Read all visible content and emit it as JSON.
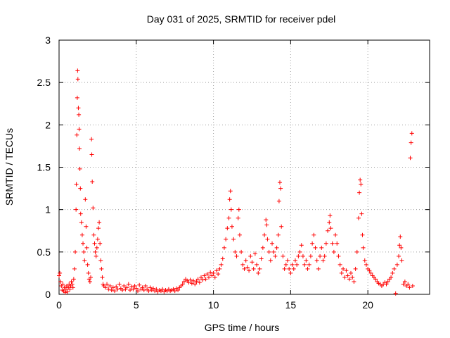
{
  "chart_data": {
    "type": "scatter",
    "title": "Day 031 of 2025, SRMTID for receiver pdel",
    "xlabel": "GPS time / hours",
    "ylabel": "SRMTID / TECUs",
    "xlim": [
      0,
      24
    ],
    "ylim": [
      0,
      3
    ],
    "xticks": [
      0,
      5,
      10,
      15,
      20
    ],
    "yticks": [
      0,
      0.5,
      1,
      1.5,
      2,
      2.5,
      3
    ],
    "xtick_labels": [
      "0",
      "5",
      "10",
      "15",
      "20"
    ],
    "ytick_labels": [
      "0",
      "0.5",
      "1",
      "1.5",
      "2",
      "2.5",
      "3"
    ],
    "grid": true,
    "marker": "+",
    "color": "#ff0000",
    "series": [
      {
        "name": "SRMTID",
        "points": [
          [
            0.0,
            0.22
          ],
          [
            0.05,
            0.25
          ],
          [
            0.1,
            0.15
          ],
          [
            0.15,
            0.1
          ],
          [
            0.2,
            0.05
          ],
          [
            0.25,
            0.12
          ],
          [
            0.3,
            0.04
          ],
          [
            0.35,
            0.08
          ],
          [
            0.4,
            0.02
          ],
          [
            0.45,
            0.06
          ],
          [
            0.5,
            0.1
          ],
          [
            0.55,
            0.03
          ],
          [
            0.6,
            0.08
          ],
          [
            0.65,
            0.12
          ],
          [
            0.7,
            0.06
          ],
          [
            0.75,
            0.1
          ],
          [
            0.8,
            0.15
          ],
          [
            0.85,
            0.12
          ],
          [
            0.9,
            0.08
          ],
          [
            0.95,
            0.18
          ],
          [
            1.0,
            0.3
          ],
          [
            1.05,
            0.5
          ],
          [
            1.1,
            1.0
          ],
          [
            1.12,
            1.3
          ],
          [
            1.15,
            1.88
          ],
          [
            1.18,
            2.32
          ],
          [
            1.2,
            2.64
          ],
          [
            1.22,
            2.54
          ],
          [
            1.25,
            2.2
          ],
          [
            1.28,
            2.12
          ],
          [
            1.3,
            1.95
          ],
          [
            1.32,
            1.72
          ],
          [
            1.35,
            1.48
          ],
          [
            1.38,
            1.25
          ],
          [
            1.4,
            0.95
          ],
          [
            1.45,
            0.85
          ],
          [
            1.5,
            0.7
          ],
          [
            1.55,
            0.6
          ],
          [
            1.6,
            0.5
          ],
          [
            1.65,
            0.4
          ],
          [
            1.7,
            1.12
          ],
          [
            1.75,
            0.8
          ],
          [
            1.8,
            0.55
          ],
          [
            1.85,
            0.35
          ],
          [
            1.9,
            0.25
          ],
          [
            1.95,
            0.18
          ],
          [
            2.0,
            0.15
          ],
          [
            2.05,
            0.2
          ],
          [
            2.1,
            1.83
          ],
          [
            2.12,
            1.65
          ],
          [
            2.15,
            1.33
          ],
          [
            2.2,
            1.02
          ],
          [
            2.25,
            0.7
          ],
          [
            2.3,
            0.6
          ],
          [
            2.35,
            0.5
          ],
          [
            2.4,
            0.45
          ],
          [
            2.45,
            0.55
          ],
          [
            2.5,
            0.65
          ],
          [
            2.55,
            0.78
          ],
          [
            2.6,
            0.85
          ],
          [
            2.65,
            0.6
          ],
          [
            2.7,
            0.4
          ],
          [
            2.75,
            0.3
          ],
          [
            2.8,
            0.2
          ],
          [
            2.85,
            0.12
          ],
          [
            2.9,
            0.1
          ],
          [
            3.0,
            0.08
          ],
          [
            3.1,
            0.12
          ],
          [
            3.2,
            0.06
          ],
          [
            3.3,
            0.1
          ],
          [
            3.4,
            0.05
          ],
          [
            3.5,
            0.08
          ],
          [
            3.6,
            0.04
          ],
          [
            3.7,
            0.09
          ],
          [
            3.8,
            0.06
          ],
          [
            3.9,
            0.12
          ],
          [
            4.0,
            0.07
          ],
          [
            4.1,
            0.05
          ],
          [
            4.2,
            0.1
          ],
          [
            4.3,
            0.06
          ],
          [
            4.4,
            0.08
          ],
          [
            4.5,
            0.12
          ],
          [
            4.6,
            0.05
          ],
          [
            4.7,
            0.09
          ],
          [
            4.8,
            0.06
          ],
          [
            4.9,
            0.1
          ],
          [
            5.0,
            0.07
          ],
          [
            5.1,
            0.04
          ],
          [
            5.2,
            0.11
          ],
          [
            5.3,
            0.06
          ],
          [
            5.4,
            0.08
          ],
          [
            5.5,
            0.05
          ],
          [
            5.6,
            0.1
          ],
          [
            5.7,
            0.06
          ],
          [
            5.8,
            0.04
          ],
          [
            5.9,
            0.08
          ],
          [
            6.0,
            0.05
          ],
          [
            6.1,
            0.07
          ],
          [
            6.2,
            0.04
          ],
          [
            6.3,
            0.06
          ],
          [
            6.4,
            0.03
          ],
          [
            6.5,
            0.05
          ],
          [
            6.6,
            0.04
          ],
          [
            6.7,
            0.06
          ],
          [
            6.8,
            0.03
          ],
          [
            6.9,
            0.05
          ],
          [
            7.0,
            0.04
          ],
          [
            7.1,
            0.06
          ],
          [
            7.2,
            0.04
          ],
          [
            7.3,
            0.05
          ],
          [
            7.4,
            0.06
          ],
          [
            7.5,
            0.04
          ],
          [
            7.6,
            0.07
          ],
          [
            7.7,
            0.05
          ],
          [
            7.8,
            0.08
          ],
          [
            7.9,
            0.1
          ],
          [
            8.0,
            0.12
          ],
          [
            8.1,
            0.15
          ],
          [
            8.2,
            0.18
          ],
          [
            8.3,
            0.16
          ],
          [
            8.4,
            0.14
          ],
          [
            8.5,
            0.17
          ],
          [
            8.6,
            0.13
          ],
          [
            8.7,
            0.16
          ],
          [
            8.8,
            0.12
          ],
          [
            8.9,
            0.15
          ],
          [
            9.0,
            0.18
          ],
          [
            9.1,
            0.14
          ],
          [
            9.2,
            0.2
          ],
          [
            9.3,
            0.17
          ],
          [
            9.4,
            0.22
          ],
          [
            9.5,
            0.18
          ],
          [
            9.6,
            0.24
          ],
          [
            9.7,
            0.2
          ],
          [
            9.8,
            0.26
          ],
          [
            9.9,
            0.22
          ],
          [
            10.0,
            0.25
          ],
          [
            10.1,
            0.2
          ],
          [
            10.2,
            0.28
          ],
          [
            10.3,
            0.24
          ],
          [
            10.4,
            0.3
          ],
          [
            10.5,
            0.35
          ],
          [
            10.6,
            0.42
          ],
          [
            10.7,
            0.55
          ],
          [
            10.8,
            0.65
          ],
          [
            10.9,
            0.78
          ],
          [
            11.0,
            0.9
          ],
          [
            11.05,
            1.12
          ],
          [
            11.1,
            1.22
          ],
          [
            11.15,
            1.0
          ],
          [
            11.2,
            0.8
          ],
          [
            11.3,
            0.65
          ],
          [
            11.4,
            0.5
          ],
          [
            11.5,
            0.45
          ],
          [
            11.6,
            0.9
          ],
          [
            11.65,
            1.0
          ],
          [
            11.7,
            0.7
          ],
          [
            11.8,
            0.5
          ],
          [
            11.9,
            0.35
          ],
          [
            12.0,
            0.3
          ],
          [
            12.1,
            0.4
          ],
          [
            12.2,
            0.32
          ],
          [
            12.3,
            0.28
          ],
          [
            12.4,
            0.45
          ],
          [
            12.5,
            0.38
          ],
          [
            12.6,
            0.3
          ],
          [
            12.7,
            0.48
          ],
          [
            12.8,
            0.35
          ],
          [
            12.9,
            0.25
          ],
          [
            13.0,
            0.3
          ],
          [
            13.1,
            0.42
          ],
          [
            13.2,
            0.55
          ],
          [
            13.3,
            0.7
          ],
          [
            13.4,
            0.88
          ],
          [
            13.45,
            0.82
          ],
          [
            13.5,
            0.65
          ],
          [
            13.6,
            0.5
          ],
          [
            13.7,
            0.4
          ],
          [
            13.8,
            0.6
          ],
          [
            13.9,
            0.5
          ],
          [
            14.0,
            0.45
          ],
          [
            14.1,
            0.55
          ],
          [
            14.2,
            0.7
          ],
          [
            14.25,
            1.1
          ],
          [
            14.3,
            1.32
          ],
          [
            14.35,
            1.25
          ],
          [
            14.4,
            0.8
          ],
          [
            14.5,
            0.45
          ],
          [
            14.6,
            0.3
          ],
          [
            14.7,
            0.35
          ],
          [
            14.8,
            0.4
          ],
          [
            14.9,
            0.3
          ],
          [
            15.0,
            0.25
          ],
          [
            15.1,
            0.35
          ],
          [
            15.2,
            0.3
          ],
          [
            15.3,
            0.4
          ],
          [
            15.4,
            0.35
          ],
          [
            15.5,
            0.45
          ],
          [
            15.6,
            0.5
          ],
          [
            15.7,
            0.58
          ],
          [
            15.8,
            0.45
          ],
          [
            15.9,
            0.35
          ],
          [
            16.0,
            0.4
          ],
          [
            16.1,
            0.3
          ],
          [
            16.2,
            0.35
          ],
          [
            16.3,
            0.45
          ],
          [
            16.4,
            0.6
          ],
          [
            16.5,
            0.7
          ],
          [
            16.6,
            0.55
          ],
          [
            16.7,
            0.4
          ],
          [
            16.8,
            0.3
          ],
          [
            16.9,
            0.45
          ],
          [
            17.0,
            0.55
          ],
          [
            17.1,
            0.4
          ],
          [
            17.2,
            0.45
          ],
          [
            17.3,
            0.6
          ],
          [
            17.4,
            0.75
          ],
          [
            17.5,
            0.85
          ],
          [
            17.55,
            0.93
          ],
          [
            17.6,
            0.78
          ],
          [
            17.7,
            0.6
          ],
          [
            17.8,
            0.5
          ],
          [
            17.9,
            0.7
          ],
          [
            18.0,
            0.6
          ],
          [
            18.1,
            0.45
          ],
          [
            18.2,
            0.35
          ],
          [
            18.3,
            0.25
          ],
          [
            18.4,
            0.3
          ],
          [
            18.5,
            0.2
          ],
          [
            18.6,
            0.28
          ],
          [
            18.7,
            0.22
          ],
          [
            18.8,
            0.18
          ],
          [
            18.9,
            0.25
          ],
          [
            19.0,
            0.2
          ],
          [
            19.1,
            0.15
          ],
          [
            19.2,
            0.3
          ],
          [
            19.3,
            0.5
          ],
          [
            19.4,
            0.9
          ],
          [
            19.45,
            1.2
          ],
          [
            19.5,
            1.35
          ],
          [
            19.55,
            1.3
          ],
          [
            19.6,
            0.95
          ],
          [
            19.65,
            0.7
          ],
          [
            19.7,
            0.55
          ],
          [
            19.8,
            0.4
          ],
          [
            19.9,
            0.35
          ],
          [
            20.0,
            0.3
          ],
          [
            20.1,
            0.28
          ],
          [
            20.2,
            0.25
          ],
          [
            20.3,
            0.22
          ],
          [
            20.4,
            0.2
          ],
          [
            20.5,
            0.18
          ],
          [
            20.6,
            0.15
          ],
          [
            20.7,
            0.13
          ],
          [
            20.8,
            0.12
          ],
          [
            20.9,
            0.1
          ],
          [
            21.0,
            0.12
          ],
          [
            21.1,
            0.14
          ],
          [
            21.2,
            0.12
          ],
          [
            21.3,
            0.15
          ],
          [
            21.4,
            0.18
          ],
          [
            21.5,
            0.2
          ],
          [
            21.6,
            0.25
          ],
          [
            21.7,
            0.3
          ],
          [
            21.8,
            0.01
          ],
          [
            21.9,
            0.35
          ],
          [
            22.0,
            0.45
          ],
          [
            22.05,
            0.58
          ],
          [
            22.1,
            0.68
          ],
          [
            22.15,
            0.55
          ],
          [
            22.2,
            0.4
          ],
          [
            22.3,
            0.12
          ],
          [
            22.4,
            0.15
          ],
          [
            22.5,
            0.1
          ],
          [
            22.6,
            0.12
          ],
          [
            22.7,
            0.08
          ],
          [
            22.75,
            1.61
          ],
          [
            22.8,
            1.79
          ],
          [
            22.85,
            1.9
          ],
          [
            22.9,
            0.1
          ]
        ]
      }
    ]
  }
}
